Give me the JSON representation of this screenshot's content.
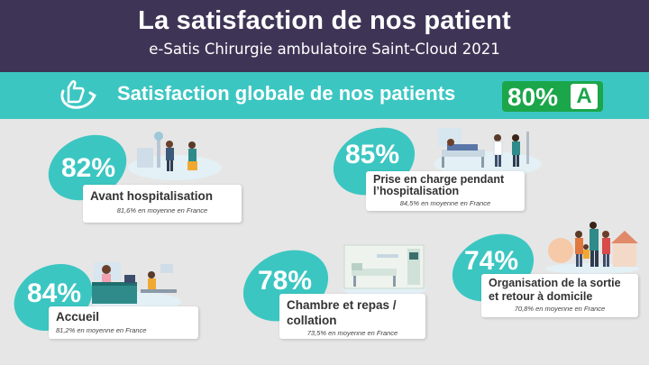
{
  "header": {
    "title": "La satisfaction de nos patient",
    "subtitle": "e-Satis Chirurgie ambulatoire Saint-Cloud 2021"
  },
  "banner": {
    "label": "Satisfaction globale de nos patients",
    "score": "80%",
    "grade": "A",
    "icon": "thumbs-up-swoosh-icon"
  },
  "colors": {
    "header_bg": "#3e3556",
    "accent": "#3cc6c2",
    "score_green": "#1ba64a",
    "background": "#e6e6e6"
  },
  "items": [
    {
      "percent": "82%",
      "category": "Avant hospitalisation",
      "average": "81,6% en moyenne en France",
      "icon": "reception-staff-illustration"
    },
    {
      "percent": "85%",
      "category": "Prise en charge pendant l’hospitalisation",
      "average": "84,5% en moyenne en France",
      "icon": "hospital-bed-care-illustration"
    },
    {
      "percent": "84%",
      "category": "Accueil",
      "average": "81,2% en moyenne en France",
      "icon": "reception-desk-illustration"
    },
    {
      "percent": "78%",
      "category": "Chambre et repas / collation",
      "average": "73,5% en moyenne en France",
      "icon": "hospital-room-illustration"
    },
    {
      "percent": "74%",
      "category": "Organisation de la sortie et retour à domicile",
      "average": "70,8% en moyenne en France",
      "icon": "family-home-illustration"
    }
  ]
}
